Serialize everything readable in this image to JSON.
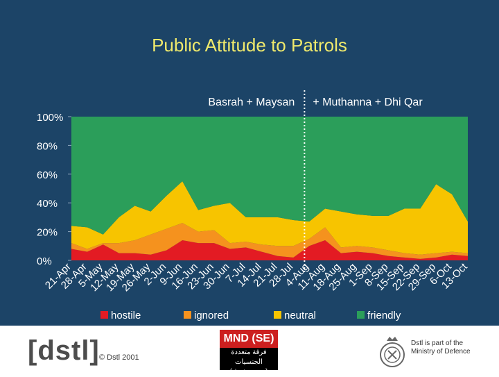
{
  "title": "Public Attitude to Patrols",
  "region_labels": [
    "Basrah + Maysan",
    "+ Muthanna + Dhi Qar"
  ],
  "chart_data": {
    "type": "area",
    "stacked": true,
    "categories": [
      "21-Apr",
      "28-Apr",
      "5-May",
      "12-May",
      "19-May",
      "26-May",
      "2-Jun",
      "9-Jun",
      "16-Jun",
      "23-Jun",
      "30-Jun",
      "7-Jul",
      "14-Jul",
      "21-Jul",
      "28-Jul",
      "4-Aug",
      "11-Aug",
      "18-Aug",
      "25-Aug",
      "1-Sep",
      "8-Sep",
      "15-Sep",
      "22-Sep",
      "29-Sep",
      "6-Oct",
      "13-Oct"
    ],
    "series": [
      {
        "name": "hostile",
        "color": "#e31b23",
        "values": [
          8,
          6,
          11,
          5,
          5,
          4,
          7,
          14,
          12,
          12,
          8,
          9,
          6,
          3,
          2,
          10,
          14,
          5,
          6,
          5,
          3,
          2,
          1,
          2,
          4,
          3
        ]
      },
      {
        "name": "ignored",
        "color": "#f5921e",
        "values": [
          4,
          2,
          1,
          7,
          9,
          14,
          15,
          12,
          8,
          9,
          4,
          4,
          5,
          7,
          8,
          5,
          9,
          4,
          4,
          4,
          4,
          3,
          3,
          3,
          2,
          2
        ]
      },
      {
        "name": "neutral",
        "color": "#f7c400",
        "values": [
          12,
          15,
          6,
          18,
          24,
          16,
          23,
          29,
          15,
          17,
          28,
          17,
          19,
          20,
          18,
          12,
          13,
          25,
          22,
          22,
          24,
          31,
          32,
          48,
          40,
          22
        ]
      },
      {
        "name": "friendly",
        "color": "#2b9e5a",
        "values": [
          76,
          77,
          82,
          70,
          62,
          66,
          55,
          45,
          65,
          62,
          60,
          70,
          70,
          70,
          72,
          73,
          64,
          66,
          68,
          69,
          69,
          64,
          64,
          47,
          54,
          73
        ]
      }
    ],
    "ylim": [
      0,
      100
    ],
    "yticks": [
      "0%",
      "20%",
      "40%",
      "60%",
      "80%",
      "100%"
    ],
    "divider_after_category": "28-Jul",
    "legend_position": "bottom"
  },
  "footer": {
    "logo": "[dstl]",
    "copyright": "© Dstl 2001",
    "mnd_label": "MND (SE)",
    "mnd_arabic_1": "فرقة متعددة الجنسيات",
    "mnd_arabic_2": "(جنوب شرق)",
    "mod_line1": "Dstl is part of the",
    "mod_line2": "Ministry of Defence"
  }
}
